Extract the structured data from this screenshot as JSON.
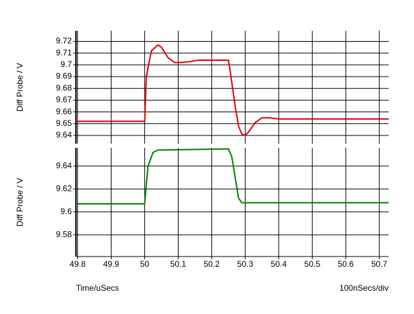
{
  "chart_data": [
    {
      "type": "line",
      "ylabel": "Diff Probe / V",
      "x": [
        49.795,
        50.0,
        50.005,
        50.02,
        50.04,
        50.05,
        50.07,
        50.09,
        50.11,
        50.14,
        50.16,
        50.25,
        50.255,
        50.27,
        50.28,
        50.29,
        50.3,
        50.31,
        50.33,
        50.35,
        50.37,
        50.4,
        50.45,
        50.5,
        50.728
      ],
      "series": [
        {
          "color": "#e00000",
          "values": [
            9.652,
            9.652,
            9.69,
            9.712,
            9.717,
            9.715,
            9.706,
            9.702,
            9.702,
            9.703,
            9.704,
            9.704,
            9.695,
            9.665,
            9.648,
            9.641,
            9.64,
            9.643,
            9.651,
            9.655,
            9.655,
            9.654,
            9.654,
            9.654,
            9.654
          ]
        }
      ],
      "xlim": [
        49.795,
        50.728
      ],
      "xticks": [
        49.8,
        49.9,
        50,
        50.1,
        50.2,
        50.3,
        50.4,
        50.5,
        50.6,
        50.7
      ],
      "ylim": [
        9.633,
        9.729
      ],
      "yticks": [
        9.64,
        9.65,
        9.66,
        9.67,
        9.68,
        9.69,
        9.7,
        9.71,
        9.72
      ],
      "grid": true
    },
    {
      "type": "line",
      "ylabel": "Diff Probe / V",
      "xlabel": "Time/uSecs",
      "annotation": "100nSecs/div",
      "x": [
        49.795,
        50.0,
        50.01,
        50.025,
        50.04,
        50.25,
        50.26,
        50.27,
        50.28,
        50.29,
        50.728
      ],
      "series": [
        {
          "color": "#008000",
          "values": [
            9.607,
            9.607,
            9.64,
            9.652,
            9.654,
            9.655,
            9.648,
            9.63,
            9.612,
            9.608,
            9.608
          ]
        }
      ],
      "xlim": [
        49.795,
        50.728
      ],
      "xticks": [
        49.8,
        49.9,
        50,
        50.1,
        50.2,
        50.3,
        50.4,
        50.5,
        50.6,
        50.7
      ],
      "ylim": [
        9.561,
        9.656
      ],
      "yticks": [
        9.58,
        9.6,
        9.62,
        9.64
      ],
      "grid": true
    }
  ]
}
